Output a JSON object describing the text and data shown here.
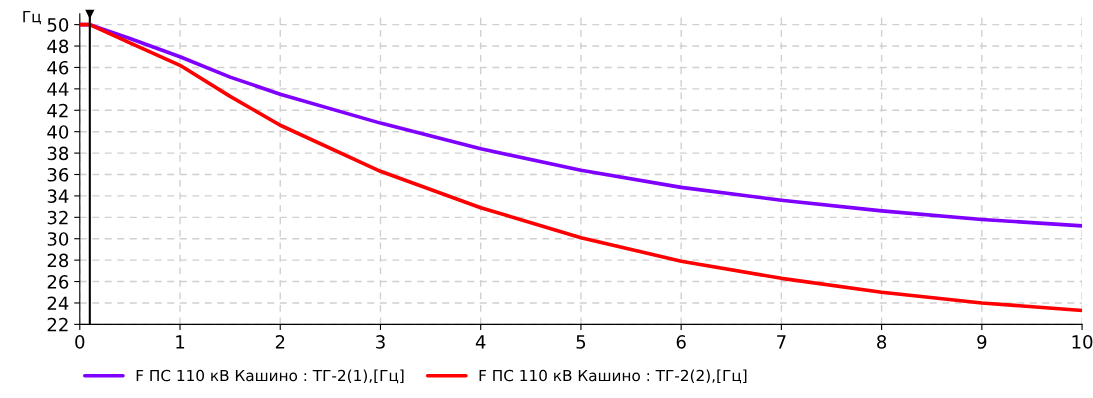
{
  "chart_data": {
    "type": "line",
    "ylabel": "Гц",
    "xlim": [
      0,
      10
    ],
    "xticks": [
      0,
      1,
      2,
      3,
      4,
      5,
      6,
      7,
      8,
      9,
      10
    ],
    "ylim": [
      22,
      51
    ],
    "yticks": [
      22,
      24,
      26,
      28,
      30,
      32,
      34,
      36,
      38,
      40,
      42,
      44,
      46,
      48,
      50
    ],
    "grid": true,
    "legend": "bottom",
    "marker": "none",
    "line_style": "solid",
    "ref_lines": [
      {
        "axis": "x",
        "value": 0.1,
        "color": "#000000"
      }
    ],
    "series": [
      {
        "name": "F ПС 110 кВ Кашино : ТГ-2(1),[Гц]",
        "color": "#7f00ff",
        "x": [
          0,
          0.1,
          0.5,
          1,
          1.5,
          2,
          3,
          4,
          5,
          6,
          7,
          8,
          9,
          10
        ],
        "values": [
          50,
          50,
          48.7,
          47.0,
          45.1,
          43.5,
          40.8,
          38.4,
          36.4,
          34.8,
          33.6,
          32.6,
          31.8,
          31.2
        ]
      },
      {
        "name": "F ПС 110 кВ Кашино : ТГ-2(2),[Гц]",
        "color": "#ff0000",
        "x": [
          0,
          0.1,
          0.5,
          1,
          1.5,
          2,
          3,
          4,
          5,
          6,
          7,
          8,
          9,
          10
        ],
        "values": [
          50,
          50,
          48.3,
          46.2,
          43.3,
          40.6,
          36.3,
          32.9,
          30.1,
          27.9,
          26.3,
          25.0,
          24.0,
          23.3
        ]
      }
    ]
  }
}
